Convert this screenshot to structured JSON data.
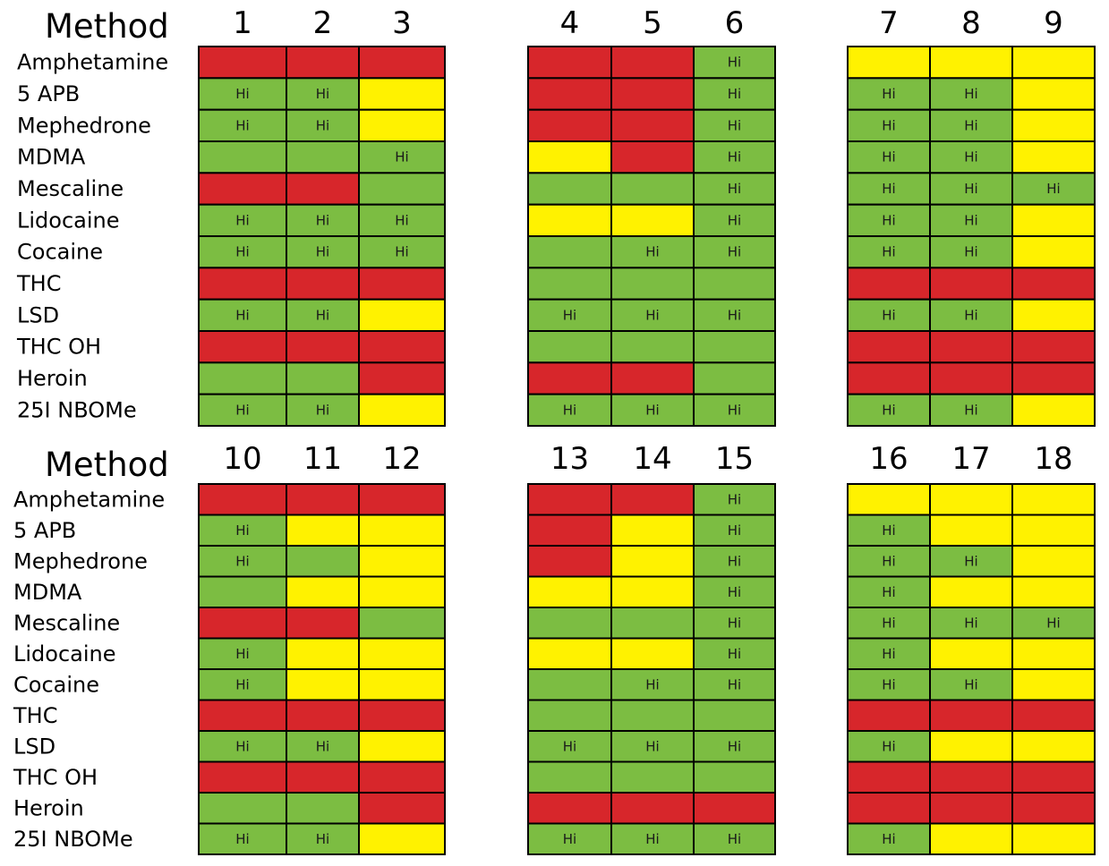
{
  "colors": {
    "G": "#7cbd42",
    "Y": "#fff200",
    "R": "#d7262b"
  },
  "chart_data": {
    "type": "heatmap",
    "title": "Method",
    "legend": {
      "G": "green",
      "Y": "yellow",
      "R": "red"
    },
    "rows": [
      "Amphetamine",
      "5 APB",
      "Mephedrone",
      "MDMA",
      "Mescaline",
      "Lidocaine",
      "Cocaine",
      "THC",
      "LSD",
      "THC OH",
      "Heroin",
      "25I NBOMe"
    ],
    "cell_text": "Hi",
    "methods": [
      {
        "label": "1",
        "cells": [
          "R",
          "G",
          "G",
          "G",
          "R",
          "G",
          "G",
          "R",
          "G",
          "R",
          "G",
          "G"
        ],
        "hi": [
          false,
          true,
          true,
          false,
          false,
          true,
          true,
          false,
          true,
          false,
          false,
          true
        ]
      },
      {
        "label": "2",
        "cells": [
          "R",
          "G",
          "G",
          "G",
          "R",
          "G",
          "G",
          "R",
          "G",
          "R",
          "G",
          "G"
        ],
        "hi": [
          false,
          true,
          true,
          false,
          false,
          true,
          true,
          false,
          true,
          false,
          false,
          true
        ]
      },
      {
        "label": "3",
        "cells": [
          "R",
          "Y",
          "Y",
          "G",
          "G",
          "G",
          "G",
          "R",
          "Y",
          "R",
          "R",
          "Y"
        ],
        "hi": [
          false,
          false,
          false,
          true,
          false,
          true,
          true,
          false,
          false,
          false,
          false,
          false
        ]
      },
      {
        "label": "4",
        "cells": [
          "R",
          "R",
          "R",
          "Y",
          "G",
          "Y",
          "G",
          "G",
          "G",
          "G",
          "R",
          "G"
        ],
        "hi": [
          false,
          false,
          false,
          false,
          false,
          false,
          false,
          false,
          true,
          false,
          false,
          true
        ]
      },
      {
        "label": "5",
        "cells": [
          "R",
          "R",
          "R",
          "R",
          "G",
          "Y",
          "G",
          "G",
          "G",
          "G",
          "R",
          "G"
        ],
        "hi": [
          false,
          false,
          false,
          false,
          false,
          false,
          true,
          false,
          true,
          false,
          false,
          true
        ]
      },
      {
        "label": "6",
        "cells": [
          "G",
          "G",
          "G",
          "G",
          "G",
          "G",
          "G",
          "G",
          "G",
          "G",
          "G",
          "G"
        ],
        "hi": [
          true,
          true,
          true,
          true,
          true,
          true,
          true,
          false,
          true,
          false,
          false,
          true
        ]
      },
      {
        "label": "7",
        "cells": [
          "Y",
          "G",
          "G",
          "G",
          "G",
          "G",
          "G",
          "R",
          "G",
          "R",
          "R",
          "G"
        ],
        "hi": [
          false,
          true,
          true,
          true,
          true,
          true,
          true,
          false,
          true,
          false,
          false,
          true
        ]
      },
      {
        "label": "8",
        "cells": [
          "Y",
          "G",
          "G",
          "G",
          "G",
          "G",
          "G",
          "R",
          "G",
          "R",
          "R",
          "G"
        ],
        "hi": [
          false,
          true,
          true,
          true,
          true,
          true,
          true,
          false,
          true,
          false,
          false,
          true
        ]
      },
      {
        "label": "9",
        "cells": [
          "Y",
          "Y",
          "Y",
          "Y",
          "G",
          "Y",
          "Y",
          "R",
          "Y",
          "R",
          "R",
          "Y"
        ],
        "hi": [
          false,
          false,
          false,
          false,
          true,
          false,
          false,
          false,
          false,
          false,
          false,
          false
        ]
      },
      {
        "label": "10",
        "cells": [
          "R",
          "G",
          "G",
          "G",
          "R",
          "G",
          "G",
          "R",
          "G",
          "R",
          "G",
          "G"
        ],
        "hi": [
          false,
          true,
          true,
          false,
          false,
          true,
          true,
          false,
          true,
          false,
          false,
          true
        ]
      },
      {
        "label": "11",
        "cells": [
          "R",
          "Y",
          "G",
          "Y",
          "R",
          "Y",
          "Y",
          "R",
          "G",
          "R",
          "G",
          "G"
        ],
        "hi": [
          false,
          false,
          false,
          false,
          false,
          false,
          false,
          false,
          true,
          false,
          false,
          true
        ]
      },
      {
        "label": "12",
        "cells": [
          "R",
          "Y",
          "Y",
          "Y",
          "G",
          "Y",
          "Y",
          "R",
          "Y",
          "R",
          "R",
          "Y"
        ],
        "hi": [
          false,
          false,
          false,
          false,
          false,
          false,
          false,
          false,
          false,
          false,
          false,
          false
        ]
      },
      {
        "label": "13",
        "cells": [
          "R",
          "R",
          "R",
          "Y",
          "G",
          "Y",
          "G",
          "G",
          "G",
          "G",
          "R",
          "G"
        ],
        "hi": [
          false,
          false,
          false,
          false,
          false,
          false,
          false,
          false,
          true,
          false,
          false,
          true
        ]
      },
      {
        "label": "14",
        "cells": [
          "R",
          "Y",
          "Y",
          "Y",
          "G",
          "Y",
          "G",
          "G",
          "G",
          "G",
          "R",
          "G"
        ],
        "hi": [
          false,
          false,
          false,
          false,
          false,
          false,
          true,
          false,
          true,
          false,
          false,
          true
        ]
      },
      {
        "label": "15",
        "cells": [
          "G",
          "G",
          "G",
          "G",
          "G",
          "G",
          "G",
          "G",
          "G",
          "G",
          "R",
          "G"
        ],
        "hi": [
          true,
          true,
          true,
          true,
          true,
          true,
          true,
          false,
          true,
          false,
          false,
          true
        ]
      },
      {
        "label": "16",
        "cells": [
          "Y",
          "G",
          "G",
          "G",
          "G",
          "G",
          "G",
          "R",
          "G",
          "R",
          "R",
          "G"
        ],
        "hi": [
          false,
          true,
          true,
          true,
          true,
          true,
          true,
          false,
          true,
          false,
          false,
          true
        ]
      },
      {
        "label": "17",
        "cells": [
          "Y",
          "Y",
          "G",
          "Y",
          "G",
          "Y",
          "G",
          "R",
          "Y",
          "R",
          "R",
          "Y"
        ],
        "hi": [
          false,
          false,
          true,
          false,
          true,
          false,
          true,
          false,
          false,
          false,
          false,
          false
        ]
      },
      {
        "label": "18",
        "cells": [
          "Y",
          "Y",
          "Y",
          "Y",
          "G",
          "Y",
          "Y",
          "R",
          "Y",
          "R",
          "R",
          "Y"
        ],
        "hi": [
          false,
          false,
          false,
          false,
          true,
          false,
          false,
          false,
          false,
          false,
          false,
          false
        ]
      }
    ]
  }
}
